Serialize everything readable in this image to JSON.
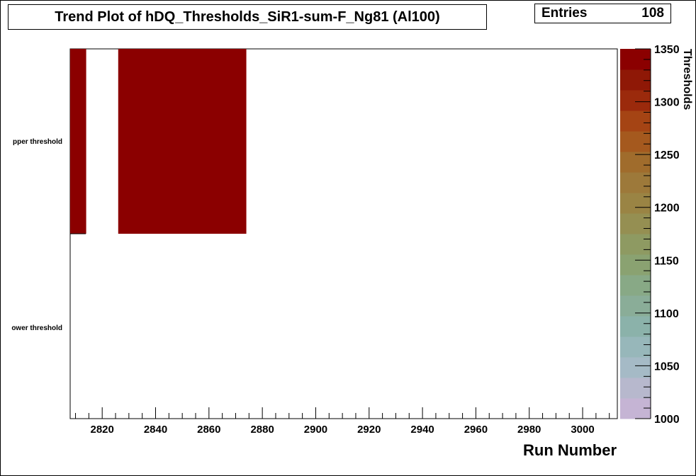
{
  "chart_data": {
    "type": "heatmap",
    "title": "Trend Plot of hDQ_Thresholds_SiR1-sum-F_Ng81 (Al100)",
    "stats": {
      "label": "Entries",
      "value": "108"
    },
    "xlabel": "Run Number",
    "zlabel": "Thresholds",
    "xlim": [
      2808,
      3013
    ],
    "x_ticks": [
      2820,
      2840,
      2860,
      2880,
      2900,
      2920,
      2940,
      2960,
      2980,
      3000
    ],
    "y_categories": [
      "Lower threshold",
      "Upper threshold"
    ],
    "y_category_labels_visible": [
      "ower threshold",
      "pper threshold"
    ],
    "zlim": [
      1000,
      1350
    ],
    "z_ticks": [
      1000,
      1050,
      1100,
      1150,
      1200,
      1250,
      1300,
      1350
    ],
    "palette": [
      "#c5b4d4",
      "#b7b8cd",
      "#a5bac6",
      "#97b7ba",
      "#8bb2aa",
      "#8aad98",
      "#88a986",
      "#8aa271",
      "#8e9a62",
      "#958f52",
      "#9a8444",
      "#9d793a",
      "#a06c2c",
      "#a5591e",
      "#a54414",
      "#9b2a0c",
      "#8f1806",
      "#8b0000"
    ],
    "cells": [
      {
        "run_start": 2808,
        "run_end": 2814,
        "category": "Upper threshold",
        "value": 1350
      },
      {
        "run_start": 2826,
        "run_end": 2874,
        "category": "Upper threshold",
        "value": 1350
      }
    ]
  }
}
